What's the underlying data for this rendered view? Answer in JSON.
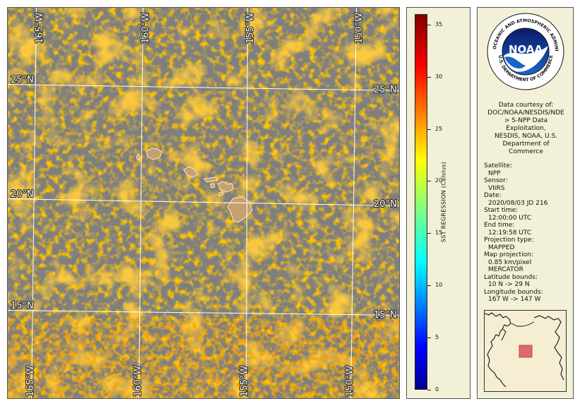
{
  "map": {
    "lon_labels_top": [
      "165°W",
      "160°W",
      "155°W",
      "150°W"
    ],
    "lon_labels_bottom": [
      "165°W",
      "160°W",
      "155°W",
      "150°W"
    ],
    "lat_labels_left": [
      "25°N",
      "20°N",
      "15°N"
    ],
    "lat_labels_right": [
      "25°N",
      "20°N",
      "15°N"
    ],
    "colors": {
      "no_data": "#7f7f7f",
      "land": "#c8a070",
      "grid": "#ffffff",
      "sst_warm": "#ff8a00",
      "sst_hot": "#ff5a00"
    }
  },
  "colorbar": {
    "title": "SST REGRESSION (Celsius)",
    "ticks": [
      "35",
      "30",
      "25",
      "20",
      "15",
      "10",
      "5",
      "0"
    ],
    "range": [
      0,
      36
    ]
  },
  "info": {
    "logo_top_text": "NATIONAL OCEANIC AND ATMOSPHERIC ADMINISTRATION",
    "logo_bottom_text": "U.S. DEPARTMENT OF COMMERCE",
    "logo_word": "NOAA",
    "credit_lines": [
      "Data courtesy of:",
      "DOC/NOAA/NESDIS/NDE",
      "> S-NPP Data",
      "Exploitation,",
      "NESDIS, NOAA, U.S.",
      "Department of",
      "Commerce"
    ],
    "satellite_label": "Satellite:",
    "satellite": "NPP",
    "sensor_label": "Sensor:",
    "sensor": "VIIRS",
    "date_label": "Date:",
    "date": "2020/08/03 JD 216",
    "start_label": "Start time:",
    "start": "12:00:00 UTC",
    "end_label": "End time:",
    "end": "12:19:58 UTC",
    "proj_type_label": "Projection type:",
    "proj_type": "MAPPED",
    "map_proj_label": "Map projection:",
    "map_proj_res": "0.85 km/pixel",
    "map_proj": "MERCATOR",
    "lat_bounds_label": "Latitude bounds:",
    "lat_bounds": "10 N -> 29 N",
    "lon_bounds_label": "Longitude bounds:",
    "lon_bounds": "167 W -> 147 W"
  }
}
